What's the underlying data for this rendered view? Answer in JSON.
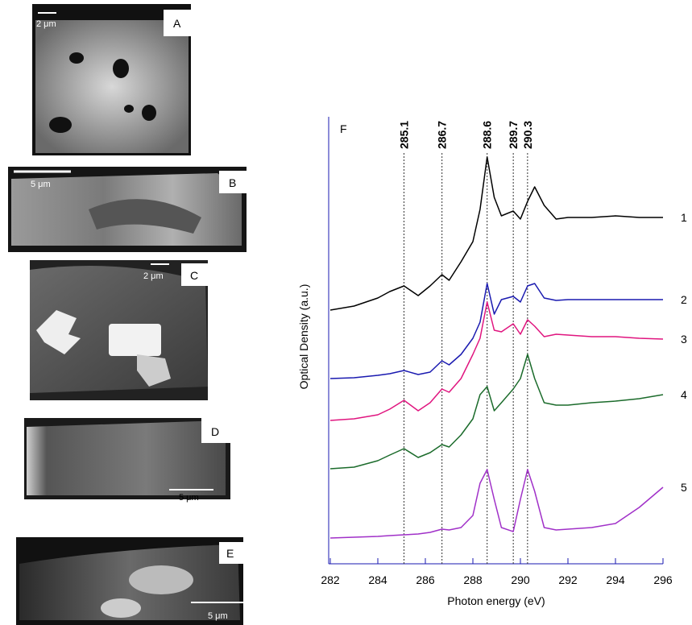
{
  "panels": [
    {
      "label": "A",
      "scale": "2 μm"
    },
    {
      "label": "B",
      "scale": "5 μm"
    },
    {
      "label": "C",
      "scale": "2 μm"
    },
    {
      "label": "D",
      "scale": "5 μm"
    },
    {
      "label": "E",
      "scale": "5 μm"
    }
  ],
  "chart_data": {
    "type": "line",
    "panel_label": "F",
    "x_label": "Photon energy (eV)",
    "y_label": "Optical Density (a.u.)",
    "x": [
      282,
      283,
      284,
      284.5,
      285.1,
      285.7,
      286.2,
      286.7,
      287,
      287.5,
      288,
      288.3,
      288.6,
      288.9,
      289.2,
      289.7,
      290,
      290.3,
      290.6,
      291,
      291.5,
      292,
      293,
      294,
      295,
      296
    ],
    "series": [
      {
        "name": "1",
        "color": "#000000",
        "values": [
          3.15,
          3.2,
          3.3,
          3.38,
          3.45,
          3.33,
          3.45,
          3.59,
          3.52,
          3.75,
          4.0,
          4.4,
          5.05,
          4.55,
          4.32,
          4.38,
          4.28,
          4.5,
          4.68,
          4.45,
          4.28,
          4.3,
          4.3,
          4.32,
          4.3,
          4.3
        ]
      },
      {
        "name": "2",
        "color": "#1a1ab0",
        "values": [
          2.3,
          2.31,
          2.34,
          2.36,
          2.4,
          2.35,
          2.38,
          2.52,
          2.47,
          2.6,
          2.8,
          3.0,
          3.48,
          3.1,
          3.28,
          3.32,
          3.25,
          3.45,
          3.48,
          3.3,
          3.27,
          3.28,
          3.28,
          3.28,
          3.28,
          3.28
        ]
      },
      {
        "name": "3",
        "color": "#e0157f",
        "values": [
          1.78,
          1.8,
          1.85,
          1.92,
          2.03,
          1.9,
          2.0,
          2.17,
          2.13,
          2.3,
          2.6,
          2.8,
          3.25,
          2.9,
          2.88,
          2.98,
          2.85,
          3.03,
          2.95,
          2.82,
          2.85,
          2.84,
          2.82,
          2.82,
          2.8,
          2.79
        ]
      },
      {
        "name": "4",
        "color": "#1b6b2b",
        "values": [
          1.18,
          1.2,
          1.28,
          1.35,
          1.43,
          1.32,
          1.38,
          1.48,
          1.45,
          1.6,
          1.8,
          2.1,
          2.2,
          1.9,
          2.0,
          2.17,
          2.3,
          2.6,
          2.3,
          2.0,
          1.97,
          1.97,
          2.0,
          2.02,
          2.05,
          2.1
        ]
      },
      {
        "name": "5",
        "color": "#a030c8",
        "values": [
          0.32,
          0.33,
          0.34,
          0.35,
          0.36,
          0.37,
          0.39,
          0.43,
          0.42,
          0.45,
          0.6,
          1.0,
          1.17,
          0.8,
          0.45,
          0.4,
          0.8,
          1.17,
          0.9,
          0.45,
          0.42,
          0.43,
          0.45,
          0.5,
          0.7,
          0.95
        ]
      }
    ],
    "peak_lines": [
      285.1,
      286.7,
      288.6,
      289.7,
      290.3
    ],
    "xlim": [
      282,
      296
    ],
    "xticks": [
      282,
      284,
      286,
      288,
      290,
      292,
      294,
      296
    ],
    "ylim": [
      0,
      5.55
    ],
    "axis_color": "#1a1ab0"
  }
}
